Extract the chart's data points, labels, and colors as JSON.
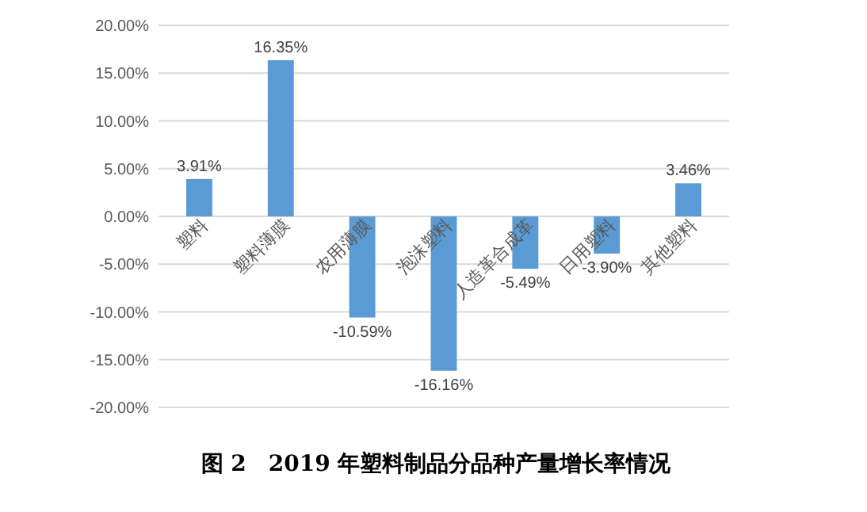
{
  "chart_data": {
    "type": "bar",
    "title": "图 2　2019 年塑料制品分品种产量增长率情况",
    "categories": [
      "塑料",
      "塑料薄膜",
      "农用薄膜",
      "泡沫塑料",
      "人造革合成革",
      "日用塑料",
      "其他塑料"
    ],
    "values": [
      3.91,
      16.35,
      -10.59,
      -16.16,
      -5.49,
      -3.9,
      3.46
    ],
    "value_labels": [
      "3.91%",
      "16.35%",
      "-10.59%",
      "-16.16%",
      "-5.49%",
      "-3.90%",
      "3.46%"
    ],
    "color": "#5b9bd5",
    "ylim": [
      -20,
      20
    ],
    "yticks": [
      {
        "value": -20,
        "label": "-20.00%"
      },
      {
        "value": -15,
        "label": "-15.00%"
      },
      {
        "value": -10,
        "label": "-10.00%"
      },
      {
        "value": -5,
        "label": "-5.00%"
      },
      {
        "value": 0,
        "label": "0.00%"
      },
      {
        "value": 5,
        "label": "5.00%"
      },
      {
        "value": 10,
        "label": "10.00%"
      },
      {
        "value": 15,
        "label": "15.00%"
      },
      {
        "value": 20,
        "label": "20.00%"
      }
    ],
    "grid": "y"
  }
}
